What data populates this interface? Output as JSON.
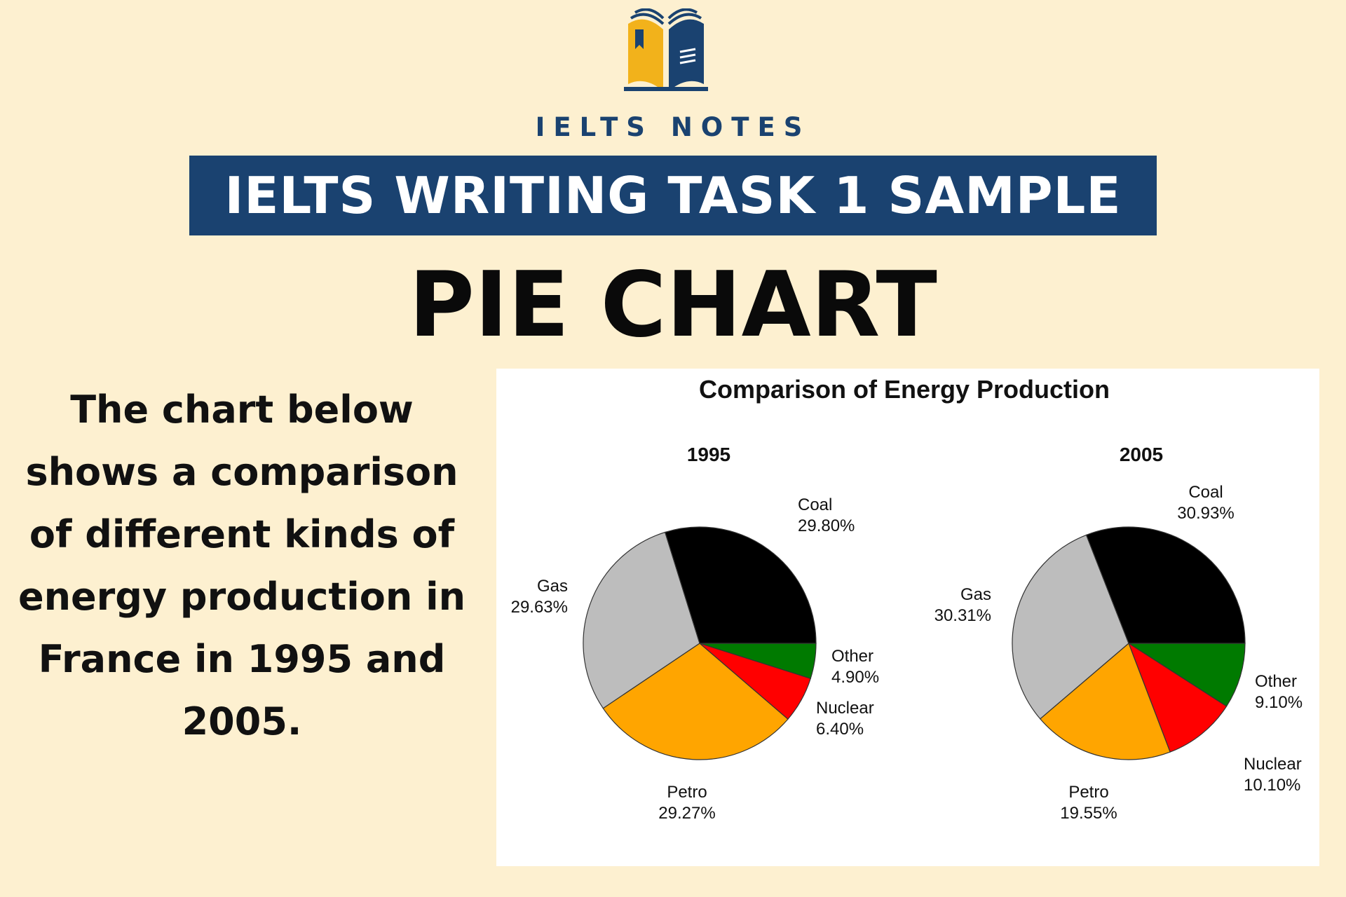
{
  "brand": {
    "name": "IELTS NOTES"
  },
  "banner": {
    "text": "IELTS WRITING TASK 1 SAMPLE"
  },
  "subtitle": "PIE CHART",
  "description": "The chart below shows a comparison of different kinds of energy production in France in 1995 and 2005.",
  "colors": {
    "background": "#fdf0d0",
    "brand_navy": "#1a4270",
    "brand_gold": "#f2b21b",
    "Coal": "#000000",
    "Other": "#007a00",
    "Nuclear": "#ff0000",
    "Petro": "#ffa500",
    "Gas": "#bdbdbd"
  },
  "chart_data": {
    "type": "pie",
    "title": "Comparison of Energy Production",
    "charts": [
      {
        "label": "1995",
        "slices": [
          {
            "name": "Coal",
            "value": 29.8,
            "label": "29.80%"
          },
          {
            "name": "Other",
            "value": 4.9,
            "label": "4.90%"
          },
          {
            "name": "Nuclear",
            "value": 6.4,
            "label": "6.40%"
          },
          {
            "name": "Petro",
            "value": 29.27,
            "label": "29.27%"
          },
          {
            "name": "Gas",
            "value": 29.63,
            "label": "29.63%"
          }
        ]
      },
      {
        "label": "2005",
        "slices": [
          {
            "name": "Coal",
            "value": 30.93,
            "label": "30.93%"
          },
          {
            "name": "Other",
            "value": 9.1,
            "label": "9.10%"
          },
          {
            "name": "Nuclear",
            "value": 10.1,
            "label": "10.10%"
          },
          {
            "name": "Petro",
            "value": 19.55,
            "label": "19.55%"
          },
          {
            "name": "Gas",
            "value": 30.31,
            "label": "30.31%"
          }
        ]
      }
    ]
  }
}
